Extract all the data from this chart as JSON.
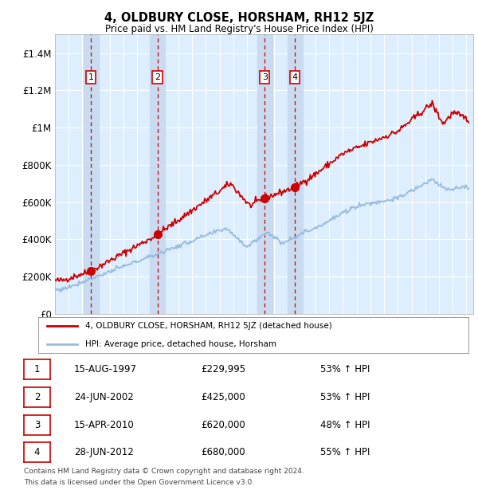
{
  "title": "4, OLDBURY CLOSE, HORSHAM, RH12 5JZ",
  "subtitle": "Price paid vs. HM Land Registry's House Price Index (HPI)",
  "transactions": [
    {
      "num": 1,
      "date": "15-AUG-1997",
      "price": 229995,
      "year": 1997.62,
      "pct": "53%",
      "dir": "↑"
    },
    {
      "num": 2,
      "date": "24-JUN-2002",
      "price": 425000,
      "year": 2002.48,
      "pct": "53%",
      "dir": "↑"
    },
    {
      "num": 3,
      "date": "15-APR-2010",
      "price": 620000,
      "year": 2010.29,
      "pct": "48%",
      "dir": "↑"
    },
    {
      "num": 4,
      "date": "28-JUN-2012",
      "price": 680000,
      "year": 2012.49,
      "pct": "55%",
      "dir": "↑"
    }
  ],
  "legend_label_red": "4, OLDBURY CLOSE, HORSHAM, RH12 5JZ (detached house)",
  "legend_label_blue": "HPI: Average price, detached house, Horsham",
  "table_rows": [
    {
      "num": "1",
      "date": "15-AUG-1997",
      "price": "£229,995",
      "info": "53% ↑ HPI"
    },
    {
      "num": "2",
      "date": "24-JUN-2002",
      "price": "£425,000",
      "info": "53% ↑ HPI"
    },
    {
      "num": "3",
      "date": "15-APR-2010",
      "price": "£620,000",
      "info": "48% ↑ HPI"
    },
    {
      "num": "4",
      "date": "28-JUN-2012",
      "price": "£680,000",
      "info": "55% ↑ HPI"
    }
  ],
  "footer_line1": "Contains HM Land Registry data © Crown copyright and database right 2024.",
  "footer_line2": "This data is licensed under the Open Government Licence v3.0.",
  "xlim": [
    1995,
    2025.5
  ],
  "ylim": [
    0,
    1500000
  ],
  "yticks": [
    0,
    200000,
    400000,
    600000,
    800000,
    1000000,
    1200000,
    1400000
  ],
  "ytick_labels": [
    "£0",
    "£200K",
    "£400K",
    "£600K",
    "£800K",
    "£1M",
    "£1.2M",
    "£1.4M"
  ],
  "red_color": "#cc0000",
  "blue_color": "#99bbdd",
  "bg_color": "#ddeeff",
  "grid_color": "#ffffff",
  "span_color": "#c5d8ee"
}
